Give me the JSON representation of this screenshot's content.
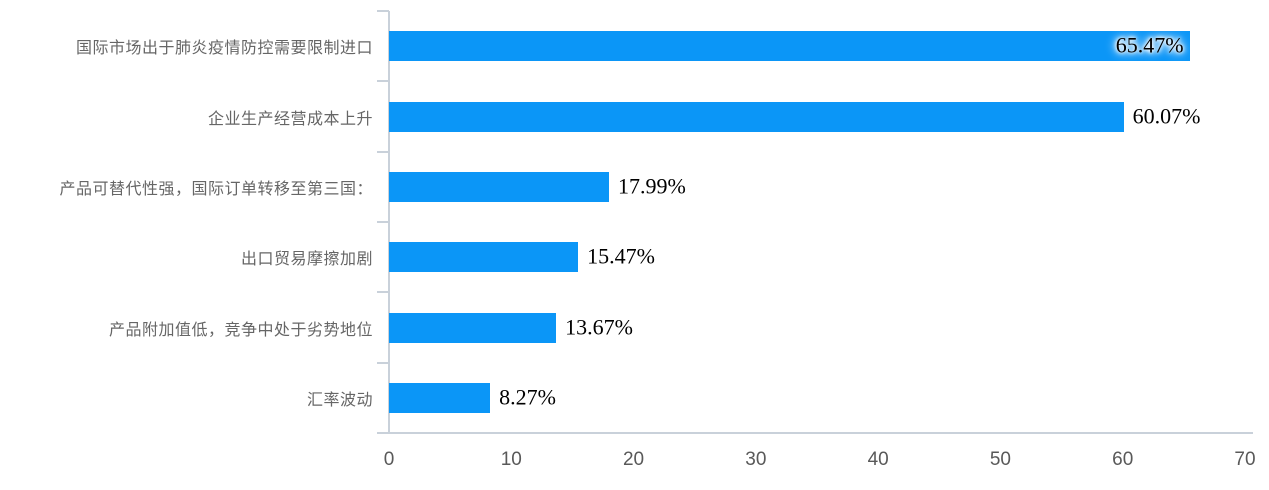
{
  "chart_data": {
    "type": "bar",
    "orientation": "horizontal",
    "title": "",
    "xlabel": "",
    "ylabel": "",
    "grid": false,
    "legend": "none",
    "categories": [
      "国际市场出于肺炎疫情防控需要限制进口",
      "企业生产经营成本上升",
      "产品可替代性强，国际订单转移至第三国：",
      "出口贸易摩擦加剧",
      "产品附加值低，竞争中处于劣势地位",
      "汇率波动"
    ],
    "values": [
      65.47,
      60.07,
      17.99,
      15.47,
      13.67,
      8.27
    ],
    "value_labels": [
      "65.47%",
      "60.07%",
      "17.99%",
      "15.47%",
      "13.67%",
      "8.27%"
    ],
    "x_ticks": [
      "0",
      "10",
      "20",
      "30",
      "40",
      "50",
      "60",
      "70"
    ],
    "xlim": [
      0,
      70
    ],
    "colors": {
      "bar": "#0b96f7",
      "axis_line": "#c9d1da",
      "tick_label": "#595959",
      "category_label": "#666666",
      "value_label": "#000000"
    }
  }
}
